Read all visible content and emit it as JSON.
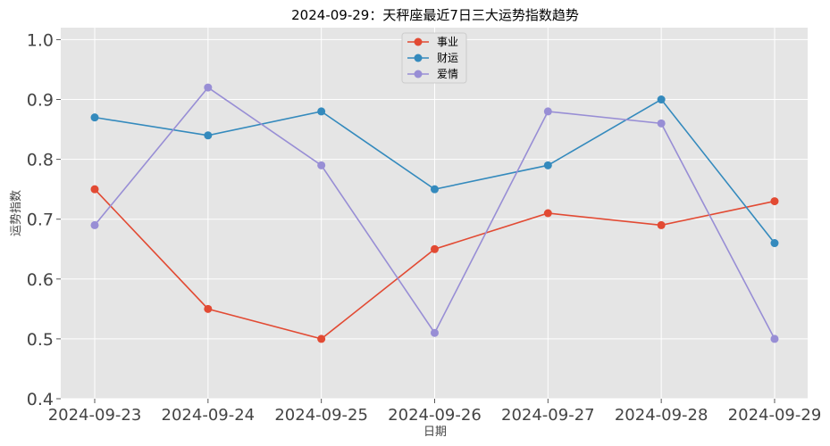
{
  "chart_data": {
    "type": "line",
    "title": "2024-09-29：天秤座最近7日三大运势指数趋势",
    "xlabel": "日期",
    "ylabel": "运势指数",
    "categories": [
      "2024-09-23",
      "2024-09-24",
      "2024-09-25",
      "2024-09-26",
      "2024-09-27",
      "2024-09-28",
      "2024-09-29"
    ],
    "ylim": [
      0.4,
      1.02
    ],
    "yticks": [
      "0.4",
      "0.5",
      "0.6",
      "0.7",
      "0.8",
      "0.9",
      "1.0"
    ],
    "grid": true,
    "legend_position": "top-center",
    "series": [
      {
        "name": "事业",
        "color": "#E24A33",
        "values": [
          0.75,
          0.55,
          0.5,
          0.65,
          0.71,
          0.69,
          0.73
        ]
      },
      {
        "name": "财运",
        "color": "#348ABD",
        "values": [
          0.87,
          0.84,
          0.88,
          0.75,
          0.79,
          0.9,
          0.66
        ]
      },
      {
        "name": "爱情",
        "color": "#988ED5",
        "values": [
          0.69,
          0.92,
          0.79,
          0.51,
          0.88,
          0.86,
          0.5
        ]
      }
    ]
  }
}
